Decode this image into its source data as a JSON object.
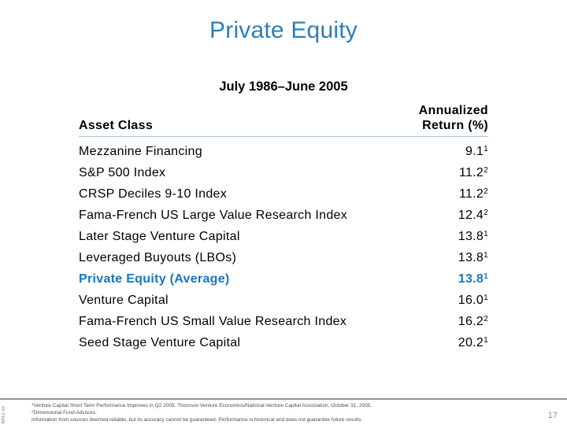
{
  "slide": {
    "title": "Private Equity",
    "page_number": "17",
    "slide_id": "BP62-08"
  },
  "table": {
    "period": "July 1986–June 2005",
    "col1_header": "Asset Class",
    "col2_header_line1": "Annualized",
    "col2_header_line2": "Return (%)",
    "rows": [
      {
        "asset_class": "Mezzanine Financing",
        "value": "9.1",
        "footnote": "1",
        "highlight": false
      },
      {
        "asset_class": "S&P 500 Index",
        "value": "11.2",
        "footnote": "2",
        "highlight": false
      },
      {
        "asset_class": "CRSP Deciles 9-10 Index",
        "value": "11.2",
        "footnote": "2",
        "highlight": false
      },
      {
        "asset_class": "Fama-French US Large Value Research Index",
        "value": "12.4",
        "footnote": "2",
        "highlight": false
      },
      {
        "asset_class": "Later Stage Venture Capital",
        "value": "13.8",
        "footnote": "1",
        "highlight": false
      },
      {
        "asset_class": "Leveraged Buyouts (LBOs)",
        "value": "13.8",
        "footnote": "1",
        "highlight": false
      },
      {
        "asset_class": "Private Equity (Average)",
        "value": "13.8",
        "footnote": "1",
        "highlight": true
      },
      {
        "asset_class": "Venture Capital",
        "value": "16.0",
        "footnote": "1",
        "highlight": false
      },
      {
        "asset_class": "Fama-French US Small Value Research Index",
        "value": "16.2",
        "footnote": "2",
        "highlight": false
      },
      {
        "asset_class": "Seed Stage Venture Capital",
        "value": "20.2",
        "footnote": "1",
        "highlight": false
      }
    ]
  },
  "footnotes": [
    {
      "marker": "1",
      "text": "Venture Capital Short Term Performance Improves in Q2 2005. Thomson Venture Economics/National Venture Capital Association, October 31, 2005."
    },
    {
      "marker": "2",
      "text": "Dimensional Fund Advisors."
    },
    {
      "marker": "",
      "text": "Information from sources deemed reliable, but its accuracy cannot be guaranteed. Performance is historical and does not guarantee future results."
    }
  ],
  "colors": {
    "title_blue": "#2E7DB6",
    "highlight_blue": "#1B75BC",
    "header_rule": "#AAC4DE",
    "footer_rule": "#979797",
    "footnote_gray": "#4d4d4d",
    "pagenum_gray": "#8a8a8a"
  }
}
